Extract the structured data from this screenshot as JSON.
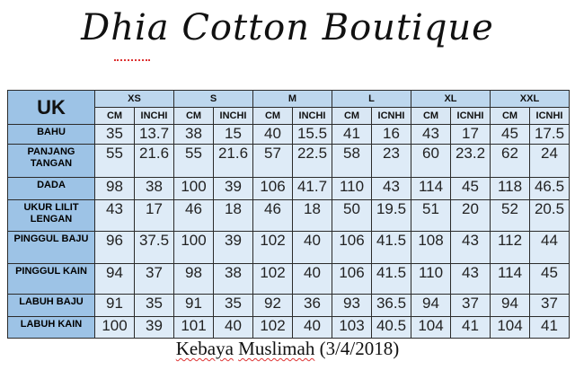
{
  "title": "Dhia Cotton Boutique",
  "table": {
    "corner": "UK",
    "sizes": [
      "XS",
      "S",
      "M",
      "L",
      "XL",
      "XXL"
    ],
    "units": [
      "CM",
      "INCHI",
      "CM",
      "INCHI",
      "CM",
      "INCHI",
      "CM",
      "ICNHI",
      "CM",
      "ICNHI",
      "CM",
      "ICNHI"
    ],
    "rows": [
      {
        "label": "BAHU",
        "values": [
          "35",
          "13.7",
          "38",
          "15",
          "40",
          "15.5",
          "41",
          "16",
          "43",
          "17",
          "45",
          "17.5"
        ]
      },
      {
        "label": "PANJANG TANGAN",
        "values": [
          "55",
          "21.6",
          "55",
          "21.6",
          "57",
          "22.5",
          "58",
          "23",
          "60",
          "23.2",
          "62",
          "24"
        ]
      },
      {
        "label": "DADA",
        "values": [
          "98",
          "38",
          "100",
          "39",
          "106",
          "41.7",
          "110",
          "43",
          "114",
          "45",
          "118",
          "46.5"
        ]
      },
      {
        "label": "UKUR LILIT LENGAN",
        "values": [
          "43",
          "17",
          "46",
          "18",
          "46",
          "18",
          "50",
          "19.5",
          "51",
          "20",
          "52",
          "20.5"
        ]
      },
      {
        "label": "PINGGUL BAJU",
        "values": [
          "96",
          "37.5",
          "100",
          "39",
          "102",
          "40",
          "106",
          "41.5",
          "108",
          "43",
          "112",
          "44"
        ]
      },
      {
        "label": "PINGGUL KAIN",
        "values": [
          "94",
          "37",
          "98",
          "38",
          "102",
          "40",
          "106",
          "41.5",
          "110",
          "43",
          "114",
          "45"
        ]
      },
      {
        "label": "LABUH BAJU",
        "values": [
          "91",
          "35",
          "91",
          "35",
          "92",
          "36",
          "93",
          "36.5",
          "94",
          "37",
          "94",
          "37"
        ]
      },
      {
        "label": "LABUH KAIN",
        "values": [
          "100",
          "39",
          "101",
          "40",
          "102",
          "40",
          "103",
          "40.5",
          "104",
          "41",
          "104",
          "41"
        ]
      }
    ]
  },
  "caption": {
    "word1": "Kebaya",
    "word2": "Muslimah",
    "rest": "(3/4/2018)"
  }
}
